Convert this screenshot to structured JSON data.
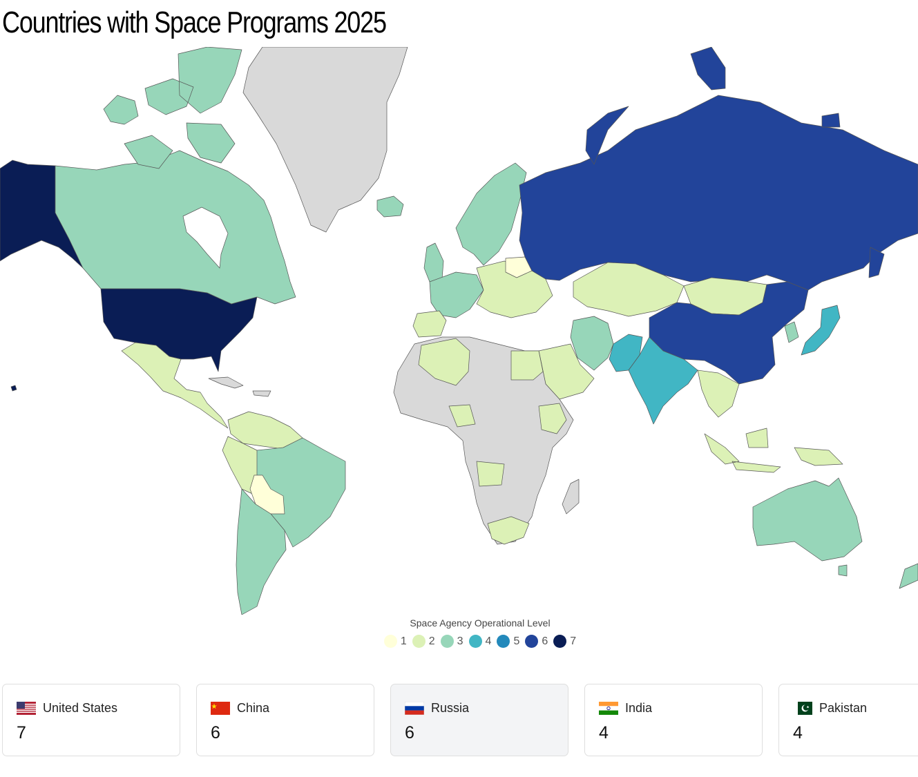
{
  "title": "Countries with Space Programs 2025",
  "legend": {
    "title": "Space Agency Operational Level",
    "levels": [
      {
        "label": "1",
        "color": "#ffffd9"
      },
      {
        "label": "2",
        "color": "#dcf1b6"
      },
      {
        "label": "3",
        "color": "#97d6b9"
      },
      {
        "label": "4",
        "color": "#41b6c4"
      },
      {
        "label": "5",
        "color": "#2389bb"
      },
      {
        "label": "6",
        "color": "#22449a"
      },
      {
        "label": "7",
        "color": "#0a1d55"
      }
    ],
    "no_data_color": "#d9d9d9"
  },
  "map": {
    "regions": [
      {
        "name": "Alaska",
        "level": 7
      },
      {
        "name": "United States",
        "level": 7
      },
      {
        "name": "Canada",
        "level": 3
      },
      {
        "name": "Greenland",
        "level": null
      },
      {
        "name": "Mexico",
        "level": 2
      },
      {
        "name": "Brazil",
        "level": 3
      },
      {
        "name": "Argentina",
        "level": 3
      },
      {
        "name": "Peru",
        "level": 2
      },
      {
        "name": "Bolivia",
        "level": 1
      },
      {
        "name": "Russia",
        "level": 6
      },
      {
        "name": "China",
        "level": 6
      },
      {
        "name": "India",
        "level": 4
      },
      {
        "name": "Pakistan",
        "level": 4
      },
      {
        "name": "Japan",
        "level": 4
      },
      {
        "name": "Kazakhstan",
        "level": 2
      },
      {
        "name": "Mongolia",
        "level": 2
      },
      {
        "name": "Iran",
        "level": 3
      },
      {
        "name": "Australia",
        "level": 3
      },
      {
        "name": "Algeria",
        "level": 2
      },
      {
        "name": "Egypt",
        "level": 2
      },
      {
        "name": "South Africa",
        "level": 2
      },
      {
        "name": "Scandinavia",
        "level": 3
      },
      {
        "name": "Western Europe",
        "level": 3
      },
      {
        "name": "Central Europe",
        "level": 2
      },
      {
        "name": "Saudi Arabia",
        "level": 2
      },
      {
        "name": "Indonesia",
        "level": 2
      },
      {
        "name": "Africa (other)",
        "level": null
      }
    ]
  },
  "cards": [
    {
      "country": "United States",
      "value": "7",
      "flag": "us-flag-icon"
    },
    {
      "country": "China",
      "value": "6",
      "flag": "china-flag-icon"
    },
    {
      "country": "Russia",
      "value": "6",
      "flag": "russia-flag-icon"
    },
    {
      "country": "India",
      "value": "4",
      "flag": "india-flag-icon"
    },
    {
      "country": "Pakistan",
      "value": "4",
      "flag": "pakistan-flag-icon"
    }
  ]
}
